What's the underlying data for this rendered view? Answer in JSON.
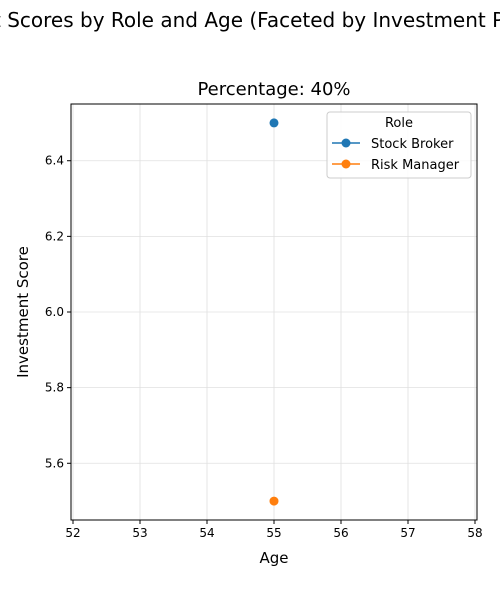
{
  "figure": {
    "suptitle": "Investment Scores by Role and Age (Faceted by Investment Percentage)"
  },
  "chart_data": {
    "type": "line",
    "title": "Percentage: 40%",
    "xlabel": "Age",
    "ylabel": "Investment Score",
    "xlim": [
      51.97,
      58.03
    ],
    "ylim": [
      5.45,
      6.55
    ],
    "xticks": [
      52,
      53,
      54,
      55,
      56,
      57,
      58
    ],
    "yticks": [
      5.6,
      5.8,
      6.0,
      6.2,
      6.4
    ],
    "grid": true,
    "legend": {
      "title": "Role",
      "position": "top-right"
    },
    "series": [
      {
        "name": "Stock Broker",
        "color": "#1f77b4",
        "x": [
          55
        ],
        "y": [
          6.5
        ]
      },
      {
        "name": "Risk Manager",
        "color": "#ff7f0e",
        "x": [
          55
        ],
        "y": [
          5.5
        ]
      }
    ]
  }
}
